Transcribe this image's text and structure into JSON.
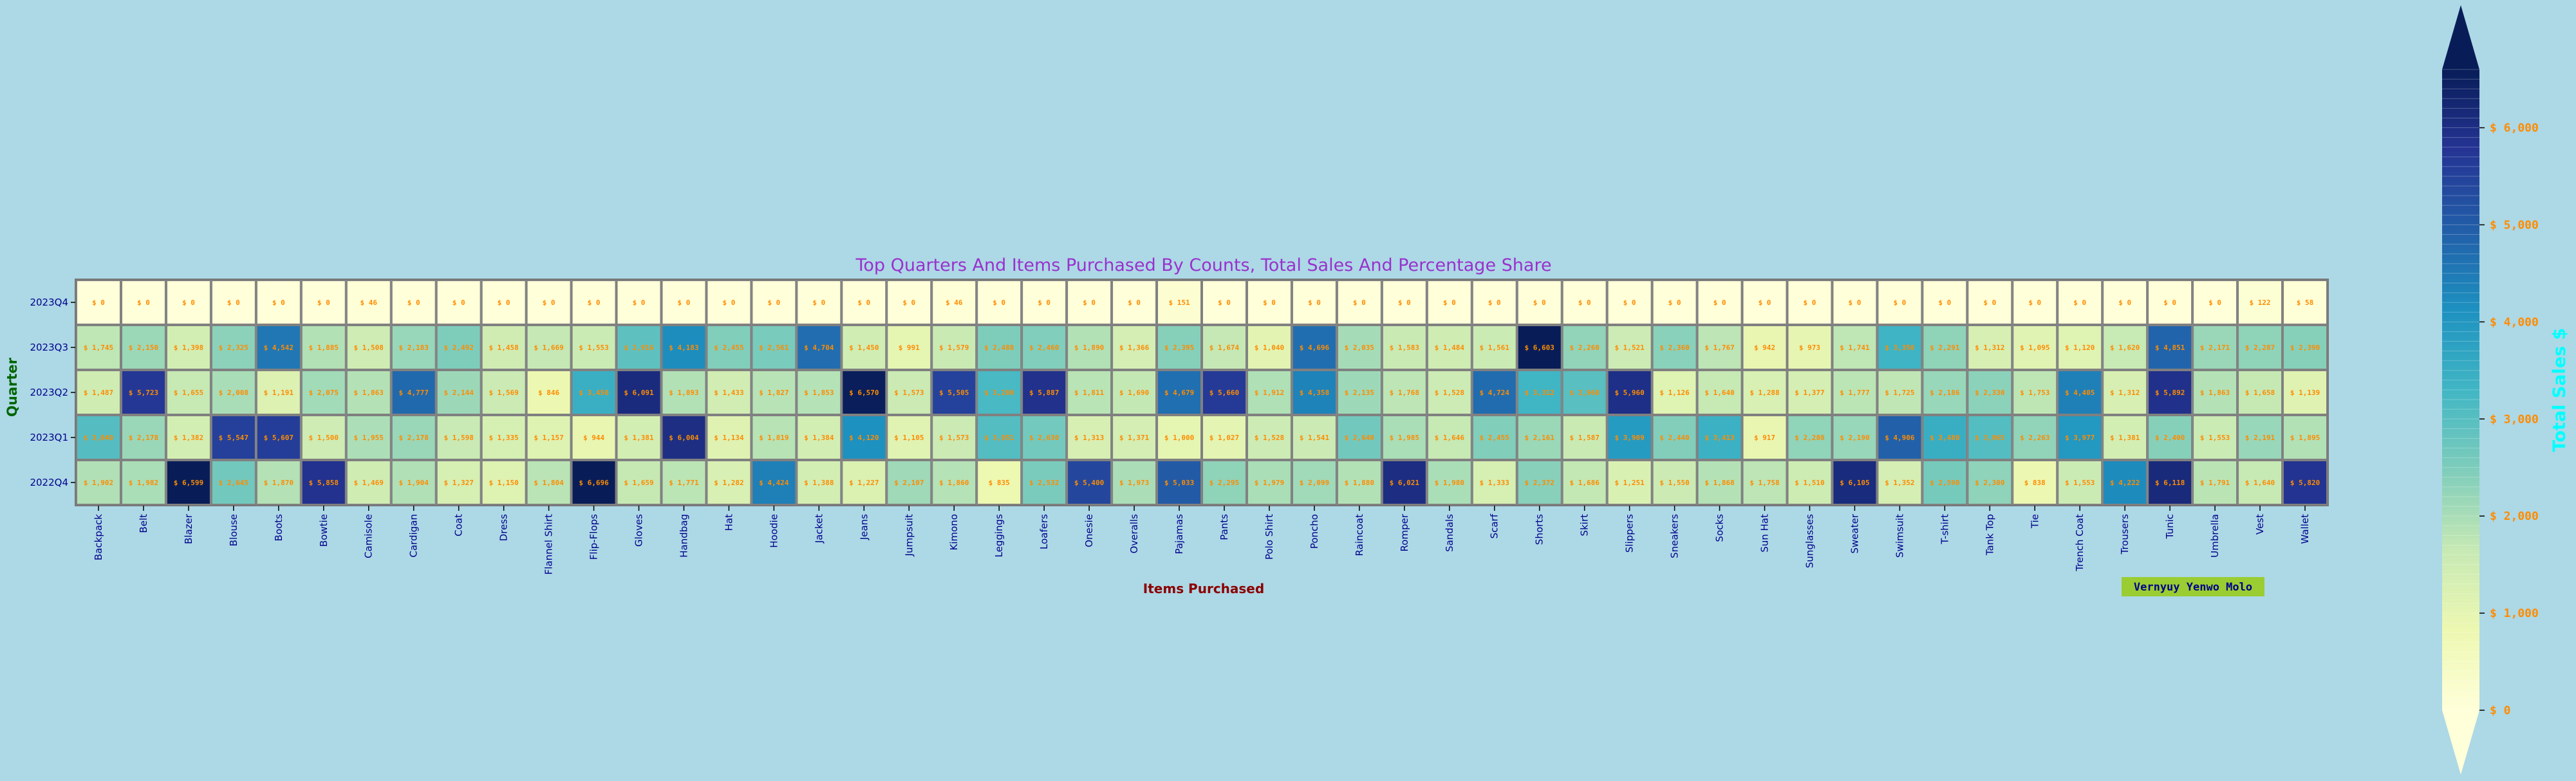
{
  "chart_data": {
    "type": "heatmap",
    "title": "Top Quarters And Items Purchased By Counts, Total Sales And Percentage Share",
    "xlabel": "Items Purchased",
    "ylabel": "Quarter",
    "annotation": "Vernyuy Yenwo Molo",
    "colorbar": {
      "label": "Total Sales $",
      "min": 0,
      "max": 6600,
      "ticks": [
        "$ 0",
        "$ 1,000",
        "$ 2,000",
        "$ 3,000",
        "$ 4,000",
        "$ 5,000",
        "$ 6,000"
      ],
      "tick_values": [
        0,
        1000,
        2000,
        3000,
        4000,
        5000,
        6000
      ],
      "colors": [
        "#ffffd9",
        "#edf8b1",
        "#c7e9b4",
        "#7fcdbb",
        "#41b6c4",
        "#1d91c0",
        "#225ea8",
        "#253494",
        "#081d58"
      ]
    },
    "colors": {
      "title": "#9932cc",
      "xlabel": "#8b0000",
      "ylabel": "#006400",
      "ticks": "#00008b",
      "colorbar_label": "#00ffff",
      "colorbar_ticks": "#ff8c00",
      "annotation_bg": "#9acd32",
      "annotation_text": "#00008b",
      "cell_text": "#ff8c00"
    },
    "categories": [
      "Backpack",
      "Belt",
      "Blazer",
      "Blouse",
      "Boots",
      "Bowtie",
      "Camisole",
      "Cardigan",
      "Coat",
      "Dress",
      "Flannel Shirt",
      "Flip-Flops",
      "Gloves",
      "Handbag",
      "Hat",
      "Hoodie",
      "Jacket",
      "Jeans",
      "Jumpsuit",
      "Kimono",
      "Leggings",
      "Loafers",
      "Onesie",
      "Overalls",
      "Pajamas",
      "Pants",
      "Polo Shirt",
      "Poncho",
      "Raincoat",
      "Romper",
      "Sandals",
      "Scarf",
      "Shorts",
      "Skirt",
      "Slippers",
      "Sneakers",
      "Socks",
      "Sun Hat",
      "Sunglasses",
      "Sweater",
      "Swimsuit",
      "T-shirt",
      "Tank Top",
      "Tie",
      "Trench Coat",
      "Trousers",
      "Tunic",
      "Umbrella",
      "Vest",
      "Wallet"
    ],
    "rows": [
      "2023Q4",
      "2023Q3",
      "2023Q2",
      "2023Q1",
      "2022Q4"
    ],
    "values": [
      [
        0,
        0,
        0,
        0,
        0,
        0,
        46,
        0,
        0,
        0,
        0,
        0,
        0,
        0,
        0,
        0,
        0,
        0,
        0,
        46,
        0,
        0,
        0,
        0,
        151,
        0,
        0,
        0,
        0,
        0,
        0,
        0,
        0,
        0,
        0,
        0,
        0,
        0,
        0,
        0,
        0,
        0,
        0,
        0,
        0,
        0,
        0,
        0,
        122,
        58
      ],
      [
        1745,
        2150,
        1398,
        2325,
        4542,
        1885,
        1508,
        2183,
        2492,
        1458,
        1669,
        1553,
        2916,
        4183,
        2455,
        2561,
        4704,
        1450,
        991,
        1579,
        2488,
        2460,
        1890,
        1366,
        2395,
        1674,
        1040,
        4696,
        2035,
        1583,
        1484,
        1561,
        6603,
        2260,
        1521,
        2360,
        1767,
        942,
        973,
        1741,
        3350,
        2291,
        1312,
        1095,
        1120,
        1620,
        4851,
        2171,
        2287,
        2390
      ],
      [
        1487,
        5723,
        1655,
        2008,
        1191,
        2075,
        1863,
        4777,
        2144,
        1569,
        846,
        3450,
        6091,
        1893,
        1433,
        1827,
        1853,
        6570,
        1573,
        5505,
        3200,
        5887,
        1811,
        1690,
        4679,
        5660,
        1912,
        4358,
        2135,
        1768,
        1528,
        4724,
        3312,
        2968,
        5960,
        1126,
        1640,
        1288,
        1377,
        1777,
        1725,
        2186,
        2330,
        1753,
        4405,
        1312,
        5892,
        1863,
        1658,
        1139
      ],
      [
        3040,
        2178,
        1382,
        5547,
        5607,
        1500,
        1955,
        2178,
        1598,
        1335,
        1157,
        944,
        1381,
        6004,
        1134,
        1819,
        1384,
        4120,
        1105,
        1573,
        3051,
        2630,
        1313,
        1371,
        1000,
        1027,
        1528,
        1541,
        2640,
        1985,
        1646,
        2455,
        2161,
        1587,
        3909,
        2440,
        3413,
        917,
        2280,
        2190,
        4906,
        3480,
        3065,
        2263,
        3977,
        1381,
        2400,
        1553,
        2191,
        1895
      ],
      [
        1902,
        1982,
        6599,
        2645,
        1870,
        5858,
        1469,
        1904,
        1327,
        1150,
        1804,
        6696,
        1659,
        1771,
        1282,
        4424,
        1388,
        1227,
        2107,
        1860,
        835,
        2532,
        5400,
        1973,
        5033,
        2295,
        1979,
        2099,
        1880,
        6021,
        1980,
        1333,
        2372,
        1686,
        1251,
        1550,
        1868,
        1758,
        1510,
        6105,
        1352,
        2590,
        2300,
        838,
        1553,
        4222,
        6118,
        1791,
        1640,
        5820
      ]
    ],
    "labels": [
      [
        "$ 0",
        "$ 0",
        "$ 0",
        "$ 0",
        "$ 0",
        "$ 0",
        "$ 46",
        "$ 0",
        "$ 0",
        "$ 0",
        "$ 0",
        "$ 0",
        "$ 0",
        "$ 0",
        "$ 0",
        "$ 0",
        "$ 0",
        "$ 0",
        "$ 0",
        "$ 46",
        "$ 0",
        "$ 0",
        "$ 0",
        "$ 0",
        "$ 151",
        "$ 0",
        "$ 0",
        "$ 0",
        "$ 0",
        "$ 0",
        "$ 0",
        "$ 0",
        "$ 0",
        "$ 0",
        "$ 0",
        "$ 0",
        "$ 0",
        "$ 0",
        "$ 0",
        "$ 0",
        "$ 0",
        "$ 0",
        "$ 0",
        "$ 0",
        "$ 0",
        "$ 0",
        "$ 0",
        "$ 0",
        "$ 122",
        "$ 58"
      ],
      [
        "$ 1,745",
        "$ 2,150",
        "$ 1,398",
        "$ 2,325",
        "$ 4,542",
        "$ 1,885",
        "$ 1,508",
        "$ 2,183",
        "$ 2,492",
        "$ 1,458",
        "$ 1,669",
        "$ 1,553",
        "$ 2,916",
        "$ 4,183",
        "$ 2,455",
        "$ 2,561",
        "$ 4,704",
        "$ 1,450",
        "$ 991",
        "$ 1,579",
        "$ 2,488",
        "$ 2,460",
        "$ 1,890",
        "$ 1,366",
        "$ 2,395",
        "$ 1,674",
        "$ 1,040",
        "$ 4,696",
        "$ 2,035",
        "$ 1,583",
        "$ 1,484",
        "$ 1,561",
        "$ 6,603",
        "$ 2,260",
        "$ 1,521",
        "$ 2,360",
        "$ 1,767",
        "$ 942",
        "$ 973",
        "$ 1,741",
        "$ 3,350",
        "$ 2,291",
        "$ 1,312",
        "$ 1,095",
        "$ 1,120",
        "$ 1,620",
        "$ 4,851",
        "$ 2,171",
        "$ 2,287",
        "$ 2,390"
      ],
      [
        "$ 1,487",
        "$ 5,723",
        "$ 1,655",
        "$ 2,008",
        "$ 1,191",
        "$ 2,075",
        "$ 1,863",
        "$ 4,777",
        "$ 2,144",
        "$ 1,569",
        "$ 846",
        "$ 3,450",
        "$ 6,091",
        "$ 1,893",
        "$ 1,433",
        "$ 1,827",
        "$ 1,853",
        "$ 6,570",
        "$ 1,573",
        "$ 5,505",
        "$ 3,200",
        "$ 5,887",
        "$ 1,811",
        "$ 1,690",
        "$ 4,679",
        "$ 5,660",
        "$ 1,912",
        "$ 4,358",
        "$ 2,135",
        "$ 1,768",
        "$ 1,528",
        "$ 4,724",
        "$ 3,312",
        "$ 2,968",
        "$ 5,960",
        "$ 1,126",
        "$ 1,640",
        "$ 1,288",
        "$ 1,377",
        "$ 1,777",
        "$ 1,725",
        "$ 2,186",
        "$ 2,330",
        "$ 1,753",
        "$ 4,405",
        "$ 1,312",
        "$ 5,892",
        "$ 1,863",
        "$ 1,658",
        "$ 1,139"
      ],
      [
        "$ 3,040",
        "$ 2,178",
        "$ 1,382",
        "$ 5,547",
        "$ 5,607",
        "$ 1,500",
        "$ 1,955",
        "$ 2,178",
        "$ 1,598",
        "$ 1,335",
        "$ 1,157",
        "$ 944",
        "$ 1,381",
        "$ 6,004",
        "$ 1,134",
        "$ 1,819",
        "$ 1,384",
        "$ 4,120",
        "$ 1,105",
        "$ 1,573",
        "$ 3,051",
        "$ 2,630",
        "$ 1,313",
        "$ 1,371",
        "$ 1,000",
        "$ 1,027",
        "$ 1,528",
        "$ 1,541",
        "$ 2,640",
        "$ 1,985",
        "$ 1,646",
        "$ 2,455",
        "$ 2,161",
        "$ 1,587",
        "$ 3,909",
        "$ 2,440",
        "$ 3,413",
        "$ 917",
        "$ 2,280",
        "$ 2,190",
        "$ 4,906",
        "$ 3,480",
        "$ 3,065",
        "$ 2,263",
        "$ 3,977",
        "$ 1,381",
        "$ 2,400",
        "$ 1,553",
        "$ 2,191",
        "$ 1,895"
      ],
      [
        "$ 1,902",
        "$ 1,982",
        "$ 6,599",
        "$ 2,645",
        "$ 1,870",
        "$ 5,858",
        "$ 1,469",
        "$ 1,904",
        "$ 1,327",
        "$ 1,150",
        "$ 1,804",
        "$ 6,696",
        "$ 1,659",
        "$ 1,771",
        "$ 1,282",
        "$ 4,424",
        "$ 1,388",
        "$ 1,227",
        "$ 2,107",
        "$ 1,860",
        "$ 835",
        "$ 2,532",
        "$ 5,400",
        "$ 1,973",
        "$ 5,033",
        "$ 2,295",
        "$ 1,979",
        "$ 2,099",
        "$ 1,880",
        "$ 6,021",
        "$ 1,980",
        "$ 1,333",
        "$ 2,372",
        "$ 1,686",
        "$ 1,251",
        "$ 1,550",
        "$ 1,868",
        "$ 1,758",
        "$ 1,510",
        "$ 6,105",
        "$ 1,352",
        "$ 2,590",
        "$ 2,300",
        "$ 838",
        "$ 1,553",
        "$ 4,222",
        "$ 6,118",
        "$ 1,791",
        "$ 1,640",
        "$ 5,820"
      ]
    ]
  }
}
